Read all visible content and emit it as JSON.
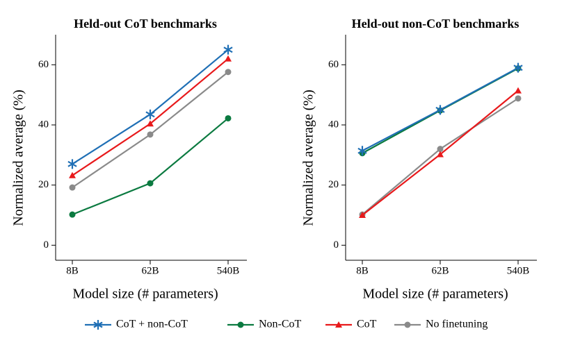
{
  "chart_data": [
    {
      "type": "line",
      "title": "Held-out CoT benchmarks",
      "xlabel": "Model size (# parameters)",
      "ylabel": "Normalized average (%)",
      "categories": [
        "8B",
        "62B",
        "540B"
      ],
      "series": [
        {
          "name": "CoT + non-CoT",
          "color": "#1f6fb5",
          "marker": "star",
          "values": [
            27,
            43.5,
            65
          ]
        },
        {
          "name": "Non-CoT",
          "color": "#0b7a40",
          "marker": "circle",
          "values": [
            10.2,
            20.6,
            42.2
          ]
        },
        {
          "name": "CoT",
          "color": "#e8191b",
          "marker": "triangle",
          "values": [
            23.2,
            40.4,
            62
          ]
        },
        {
          "name": "No finetuning",
          "color": "#8a8a8a",
          "marker": "circle",
          "values": [
            19.2,
            36.8,
            57.6
          ]
        }
      ],
      "ylim": [
        -5,
        70
      ],
      "yticks": [
        0,
        20,
        40,
        60
      ]
    },
    {
      "type": "line",
      "title": "Held-out non-CoT benchmarks",
      "xlabel": "Model size (# parameters)",
      "ylabel": "Normalized average (%)",
      "categories": [
        "8B",
        "62B",
        "540B"
      ],
      "series": [
        {
          "color": "#1f6fb5",
          "marker": "star",
          "values": [
            31.4,
            45,
            59
          ]
        },
        {
          "color": "#0b7a40",
          "marker": "circle",
          "values": [
            30.6,
            44.8,
            58.8
          ]
        },
        {
          "color": "#e8191b",
          "marker": "triangle",
          "values": [
            10,
            30.2,
            51.4
          ]
        },
        {
          "color": "#8a8a8a",
          "marker": "circle",
          "values": [
            10.2,
            32,
            48.8
          ]
        }
      ],
      "ylim": [
        -5,
        70
      ],
      "yticks": [
        0,
        20,
        40,
        60
      ]
    }
  ]
}
